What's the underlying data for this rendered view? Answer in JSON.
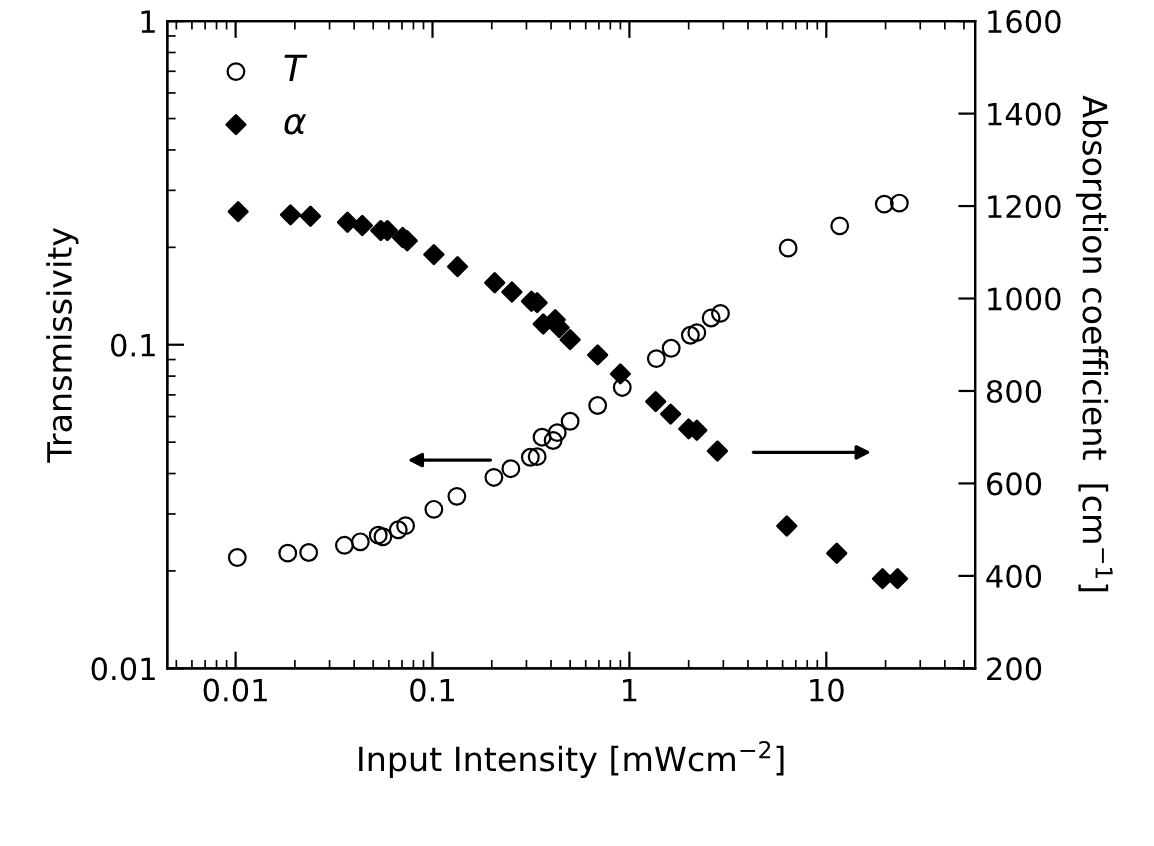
{
  "chart_data": {
    "type": "scatter",
    "xlabel": "Input Intensity [mWcm$^{−2}$]",
    "ylabel": "Transmissivity",
    "y2label": "Absorption coefficient  [cm$^{−1}$]",
    "log": "xy",
    "xlim": [
      0.0045,
      57
    ],
    "xticks": [
      0.01,
      0.1,
      1,
      10
    ],
    "ylim": [
      0.01,
      1
    ],
    "yticks": [
      0.01,
      0.1,
      1
    ],
    "y2lim": [
      200,
      1600
    ],
    "y2ticks": [
      200,
      400,
      600,
      800,
      1000,
      1200,
      1400,
      1600
    ],
    "legend": "top left",
    "grid": false,
    "series": [
      {
        "name": "T",
        "marker": "circle",
        "color": "#000000",
        "x": [
          0.0102,
          0.0184,
          0.0235,
          0.0357,
          0.043,
          0.053,
          0.056,
          0.067,
          0.073,
          0.1016,
          0.133,
          0.205,
          0.25,
          0.314,
          0.34,
          0.36,
          0.41,
          0.43,
          0.5,
          0.69,
          0.92,
          1.37,
          1.63,
          2.04,
          2.2,
          2.6,
          2.9,
          6.4,
          11.7,
          19.7,
          23.5
        ],
        "values": [
          0.022,
          0.0227,
          0.0228,
          0.024,
          0.0246,
          0.0258,
          0.0255,
          0.0268,
          0.0276,
          0.031,
          0.034,
          0.0389,
          0.0414,
          0.0449,
          0.0451,
          0.0518,
          0.0506,
          0.0535,
          0.058,
          0.0649,
          0.0738,
          0.0906,
          0.0975,
          0.107,
          0.109,
          0.121,
          0.125,
          0.199,
          0.233,
          0.272,
          0.274
        ]
      },
      {
        "name": "α",
        "marker": "diamond",
        "color": "#000000",
        "axis": "y2",
        "x": [
          0.0103,
          0.019,
          0.024,
          0.037,
          0.044,
          0.0546,
          0.059,
          0.0705,
          0.0744,
          0.1016,
          0.134,
          0.207,
          0.253,
          0.318,
          0.34,
          0.365,
          0.42,
          0.44,
          0.5,
          0.69,
          0.9,
          1.36,
          1.62,
          2.0,
          2.2,
          2.8,
          6.3,
          11.3,
          19.3,
          23
        ],
        "values": [
          1188,
          1181,
          1178,
          1165,
          1158,
          1147,
          1147,
          1132,
          1125,
          1095,
          1069,
          1034,
          1014,
          994,
          991,
          945,
          954,
          937,
          911,
          878,
          837,
          777,
          750,
          718,
          715,
          670,
          508,
          449,
          394,
          394
        ]
      }
    ]
  }
}
